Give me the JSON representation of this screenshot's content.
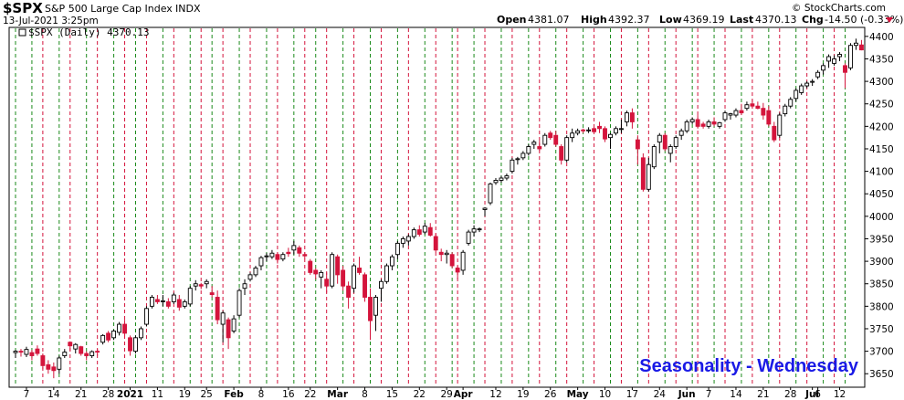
{
  "header": {
    "symbol": "$SPX",
    "name": "S&P 500 Large Cap Index",
    "exchange": "INDX",
    "date": "13-Jul-2021 3:25pm",
    "watermark": "© StockCharts.com",
    "open_label": "Open",
    "open": "4381.07",
    "high_label": "High",
    "high": "4392.37",
    "low_label": "Low",
    "low": "4369.19",
    "last_label": "Last",
    "last": "4370.13",
    "chg_label": "Chg",
    "chg": "-14.50 (-0.33%)"
  },
  "legend": {
    "label": "$SPX (Daily) 4370.13"
  },
  "annotation": "Seasonality - Wednesday",
  "colors": {
    "up_candle": "#000000",
    "down_candle": "#d4143c",
    "green_line": "#1a8a1a",
    "red_line": "#d4143c",
    "annotation": "#1a1ae6"
  },
  "chart_data": {
    "type": "candlestick",
    "symbol": "$SPX",
    "period": "Daily",
    "ylim": [
      3620,
      4420
    ],
    "yticks": [
      3650,
      3700,
      3750,
      3800,
      3850,
      3900,
      3950,
      4000,
      4050,
      4100,
      4150,
      4200,
      4250,
      4300,
      4350,
      4400
    ],
    "x_axis_labels": [
      {
        "i": 2,
        "label": "7",
        "bold": false
      },
      {
        "i": 7,
        "label": "14",
        "bold": false
      },
      {
        "i": 12,
        "label": "21",
        "bold": false
      },
      {
        "i": 17,
        "label": "28",
        "bold": false
      },
      {
        "i": 21,
        "label": "2021",
        "bold": true
      },
      {
        "i": 26,
        "label": "11",
        "bold": false
      },
      {
        "i": 31,
        "label": "19",
        "bold": false
      },
      {
        "i": 35,
        "label": "25",
        "bold": false
      },
      {
        "i": 40,
        "label": "Feb",
        "bold": true
      },
      {
        "i": 45,
        "label": "8",
        "bold": false
      },
      {
        "i": 50,
        "label": "16",
        "bold": false
      },
      {
        "i": 54,
        "label": "22",
        "bold": false
      },
      {
        "i": 59,
        "label": "Mar",
        "bold": true
      },
      {
        "i": 64,
        "label": "8",
        "bold": false
      },
      {
        "i": 69,
        "label": "15",
        "bold": false
      },
      {
        "i": 74,
        "label": "22",
        "bold": false
      },
      {
        "i": 79,
        "label": "29",
        "bold": false
      },
      {
        "i": 82,
        "label": "Apr",
        "bold": true
      },
      {
        "i": 88,
        "label": "12",
        "bold": false
      },
      {
        "i": 93,
        "label": "19",
        "bold": false
      },
      {
        "i": 98,
        "label": "26",
        "bold": false
      },
      {
        "i": 103,
        "label": "May",
        "bold": true
      },
      {
        "i": 108,
        "label": "10",
        "bold": false
      },
      {
        "i": 113,
        "label": "17",
        "bold": false
      },
      {
        "i": 118,
        "label": "24",
        "bold": false
      },
      {
        "i": 123,
        "label": "Jun",
        "bold": true
      },
      {
        "i": 127,
        "label": "7",
        "bold": false
      },
      {
        "i": 132,
        "label": "14",
        "bold": false
      },
      {
        "i": 137,
        "label": "21",
        "bold": false
      },
      {
        "i": 142,
        "label": "28",
        "bold": false
      },
      {
        "i": 146,
        "label": "Jul",
        "bold": true
      },
      {
        "i": 147,
        "label": "6",
        "bold": false
      },
      {
        "i": 151,
        "label": "12",
        "bold": false
      }
    ],
    "red_lines_i": [
      5,
      10,
      15,
      20,
      24,
      29,
      34,
      38,
      43,
      48,
      53,
      57,
      62,
      67,
      72,
      77,
      81,
      86,
      91,
      96,
      101,
      106,
      111,
      116,
      121,
      125,
      130,
      135,
      140,
      145,
      150
    ],
    "green_lines_i": [
      0,
      3,
      8,
      13,
      18,
      22,
      27,
      32,
      36,
      41,
      46,
      51,
      55,
      60,
      65,
      70,
      75,
      80,
      84,
      89,
      94,
      99,
      104,
      109,
      114,
      119,
      124,
      128,
      133,
      138,
      143,
      148,
      152
    ],
    "ohlc": [
      [
        3697,
        3703,
        3685,
        3700
      ],
      [
        3700,
        3705,
        3688,
        3698
      ],
      [
        3693,
        3710,
        3687,
        3704
      ],
      [
        3697,
        3703,
        3680,
        3690
      ],
      [
        3705,
        3713,
        3690,
        3695
      ],
      [
        3690,
        3695,
        3660,
        3668
      ],
      [
        3670,
        3680,
        3650,
        3660
      ],
      [
        3665,
        3675,
        3640,
        3657
      ],
      [
        3660,
        3690,
        3650,
        3685
      ],
      [
        3690,
        3705,
        3685,
        3698
      ],
      [
        3720,
        3722,
        3700,
        3712
      ],
      [
        3705,
        3718,
        3695,
        3715
      ],
      [
        3710,
        3712,
        3690,
        3695
      ],
      [
        3695,
        3700,
        3680,
        3690
      ],
      [
        3690,
        3702,
        3685,
        3699
      ],
      [
        3700,
        3705,
        3690,
        3698
      ],
      [
        3720,
        3738,
        3715,
        3735
      ],
      [
        3740,
        3745,
        3720,
        3725
      ],
      [
        3730,
        3748,
        3725,
        3745
      ],
      [
        3742,
        3765,
        3735,
        3760
      ],
      [
        3760,
        3770,
        3735,
        3740
      ],
      [
        3730,
        3735,
        3690,
        3701
      ],
      [
        3700,
        3735,
        3695,
        3730
      ],
      [
        3730,
        3755,
        3725,
        3750
      ],
      [
        3760,
        3800,
        3755,
        3795
      ],
      [
        3800,
        3825,
        3795,
        3820
      ],
      [
        3815,
        3825,
        3805,
        3810
      ],
      [
        3812,
        3825,
        3800,
        3812
      ],
      [
        3810,
        3818,
        3795,
        3800
      ],
      [
        3810,
        3830,
        3805,
        3825
      ],
      [
        3815,
        3825,
        3790,
        3798
      ],
      [
        3800,
        3815,
        3795,
        3810
      ],
      [
        3805,
        3845,
        3800,
        3840
      ],
      [
        3845,
        3858,
        3835,
        3850
      ],
      [
        3848,
        3852,
        3838,
        3845
      ],
      [
        3850,
        3860,
        3840,
        3855
      ],
      [
        3830,
        3845,
        3820,
        3826
      ],
      [
        3820,
        3835,
        3760,
        3770
      ],
      [
        3760,
        3790,
        3720,
        3785
      ],
      [
        3770,
        3775,
        3705,
        3730
      ],
      [
        3745,
        3780,
        3740,
        3772
      ],
      [
        3780,
        3840,
        3775,
        3835
      ],
      [
        3840,
        3860,
        3825,
        3850
      ],
      [
        3860,
        3875,
        3855,
        3870
      ],
      [
        3870,
        3890,
        3865,
        3885
      ],
      [
        3890,
        3912,
        3880,
        3908
      ],
      [
        3910,
        3918,
        3900,
        3912
      ],
      [
        3910,
        3925,
        3905,
        3918
      ],
      [
        3915,
        3920,
        3895,
        3904
      ],
      [
        3905,
        3920,
        3900,
        3915
      ],
      [
        3920,
        3930,
        3910,
        3917
      ],
      [
        3925,
        3945,
        3915,
        3935
      ],
      [
        3930,
        3935,
        3910,
        3918
      ],
      [
        3915,
        3920,
        3905,
        3912
      ],
      [
        3900,
        3905,
        3870,
        3875
      ],
      [
        3880,
        3885,
        3860,
        3872
      ],
      [
        3865,
        3880,
        3840,
        3875
      ],
      [
        3860,
        3875,
        3830,
        3845
      ],
      [
        3845,
        3920,
        3840,
        3915
      ],
      [
        3910,
        3915,
        3850,
        3870
      ],
      [
        3880,
        3890,
        3835,
        3845
      ],
      [
        3845,
        3855,
        3795,
        3820
      ],
      [
        3840,
        3895,
        3830,
        3890
      ],
      [
        3885,
        3910,
        3870,
        3875
      ],
      [
        3870,
        3875,
        3810,
        3820
      ],
      [
        3820,
        3840,
        3725,
        3768
      ],
      [
        3780,
        3825,
        3745,
        3820
      ],
      [
        3840,
        3860,
        3810,
        3855
      ],
      [
        3855,
        3895,
        3850,
        3890
      ],
      [
        3890,
        3915,
        3880,
        3910
      ],
      [
        3915,
        3945,
        3905,
        3940
      ],
      [
        3940,
        3955,
        3930,
        3950
      ],
      [
        3945,
        3960,
        3935,
        3955
      ],
      [
        3955,
        3975,
        3950,
        3970
      ],
      [
        3970,
        3980,
        3955,
        3960
      ],
      [
        3965,
        3985,
        3960,
        3978
      ],
      [
        3975,
        3985,
        3955,
        3958
      ],
      [
        3955,
        3962,
        3920,
        3925
      ],
      [
        3920,
        3928,
        3900,
        3915
      ],
      [
        3915,
        3925,
        3895,
        3918
      ],
      [
        3915,
        3920,
        3885,
        3890
      ],
      [
        3885,
        3890,
        3860,
        3876
      ],
      [
        3880,
        3925,
        3870,
        3920
      ],
      [
        3940,
        3970,
        3935,
        3965
      ],
      [
        3965,
        3980,
        3955,
        3972
      ],
      [
        3970,
        3975,
        3965,
        3972
      ],
      [
        4015,
        4020,
        4000,
        4018
      ],
      [
        4030,
        4075,
        4025,
        4072
      ],
      [
        4075,
        4085,
        4070,
        4080
      ],
      [
        4080,
        4090,
        4075,
        4085
      ],
      [
        4085,
        4095,
        4080,
        4090
      ],
      [
        4100,
        4130,
        4095,
        4125
      ],
      [
        4128,
        4132,
        4115,
        4128
      ],
      [
        4130,
        4145,
        4125,
        4140
      ],
      [
        4140,
        4160,
        4135,
        4155
      ],
      [
        4160,
        4170,
        4150,
        4165
      ],
      [
        4155,
        4168,
        4145,
        4150
      ],
      [
        4160,
        4185,
        4155,
        4180
      ],
      [
        4185,
        4190,
        4170,
        4175
      ],
      [
        4180,
        4190,
        4155,
        4160
      ],
      [
        4155,
        4160,
        4115,
        4125
      ],
      [
        4125,
        4180,
        4120,
        4175
      ],
      [
        4175,
        4195,
        4165,
        4185
      ],
      [
        4185,
        4195,
        4180,
        4190
      ],
      [
        4192,
        4195,
        4185,
        4190
      ],
      [
        4190,
        4198,
        4185,
        4192
      ],
      [
        4195,
        4198,
        4185,
        4188
      ],
      [
        4200,
        4210,
        4185,
        4195
      ],
      [
        4195,
        4200,
        4165,
        4172
      ],
      [
        4175,
        4185,
        4150,
        4182
      ],
      [
        4185,
        4200,
        4180,
        4195
      ],
      [
        4195,
        4215,
        4185,
        4195
      ],
      [
        4210,
        4235,
        4200,
        4230
      ],
      [
        4230,
        4240,
        4195,
        4210
      ],
      [
        4170,
        4180,
        4115,
        4150
      ],
      [
        4130,
        4140,
        4055,
        4060
      ],
      [
        4060,
        4130,
        4055,
        4115
      ],
      [
        4110,
        4160,
        4105,
        4155
      ],
      [
        4165,
        4185,
        4140,
        4180
      ],
      [
        4180,
        4185,
        4145,
        4150
      ],
      [
        4140,
        4160,
        4120,
        4155
      ],
      [
        4155,
        4180,
        4150,
        4175
      ],
      [
        4180,
        4195,
        4170,
        4190
      ],
      [
        4190,
        4215,
        4185,
        4210
      ],
      [
        4210,
        4220,
        4205,
        4215
      ],
      [
        4215,
        4225,
        4195,
        4200
      ],
      [
        4205,
        4210,
        4195,
        4200
      ],
      [
        4200,
        4215,
        4195,
        4210
      ],
      [
        4210,
        4220,
        4200,
        4205
      ],
      [
        4200,
        4210,
        4195,
        4208
      ],
      [
        4215,
        4235,
        4210,
        4230
      ],
      [
        4225,
        4230,
        4215,
        4228
      ],
      [
        4225,
        4240,
        4220,
        4235
      ],
      [
        4235,
        4250,
        4225,
        4230
      ],
      [
        4240,
        4255,
        4235,
        4248
      ],
      [
        4250,
        4260,
        4240,
        4245
      ],
      [
        4245,
        4255,
        4238,
        4240
      ],
      [
        4240,
        4252,
        4215,
        4225
      ],
      [
        4235,
        4245,
        4200,
        4205
      ],
      [
        4200,
        4210,
        4165,
        4170
      ],
      [
        4180,
        4230,
        4175,
        4225
      ],
      [
        4228,
        4250,
        4222,
        4245
      ],
      [
        4245,
        4265,
        4240,
        4260
      ],
      [
        4262,
        4285,
        4255,
        4280
      ],
      [
        4275,
        4295,
        4270,
        4290
      ],
      [
        4290,
        4300,
        4285,
        4296
      ],
      [
        4298,
        4305,
        4290,
        4300
      ],
      [
        4310,
        4325,
        4305,
        4320
      ],
      [
        4325,
        4340,
        4315,
        4335
      ],
      [
        4345,
        4360,
        4330,
        4355
      ],
      [
        4340,
        4358,
        4335,
        4350
      ],
      [
        4355,
        4365,
        4345,
        4360
      ],
      [
        4335,
        4340,
        4285,
        4320
      ],
      [
        4330,
        4385,
        4325,
        4380
      ],
      [
        4380,
        4395,
        4370,
        4385
      ],
      [
        4381,
        4392,
        4369,
        4370
      ]
    ]
  }
}
